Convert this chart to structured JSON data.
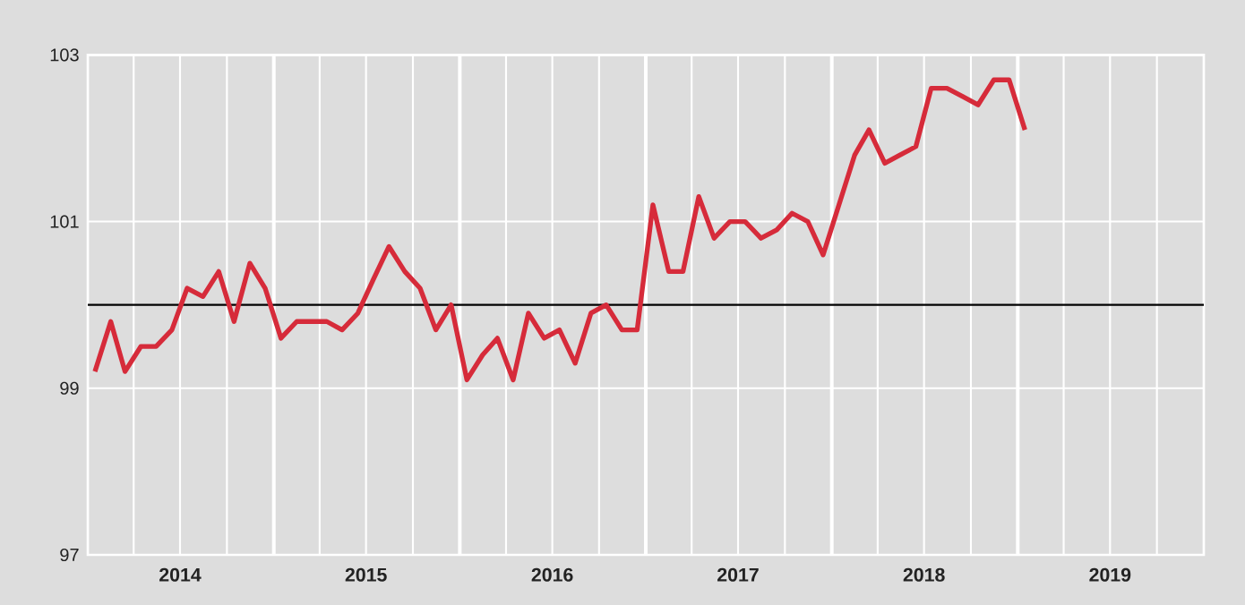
{
  "chart_data": {
    "type": "line",
    "x": [
      "2014-01-15",
      "2014-02-15",
      "2014-03-15",
      "2014-04-15",
      "2014-05-15",
      "2014-06-15",
      "2014-07-15",
      "2014-08-15",
      "2014-09-15",
      "2014-10-15",
      "2014-11-15",
      "2014-12-15",
      "2015-01-15",
      "2015-02-15",
      "2015-03-15",
      "2015-04-15",
      "2015-05-15",
      "2015-06-15",
      "2015-07-15",
      "2015-08-15",
      "2015-09-15",
      "2015-10-15",
      "2015-11-15",
      "2015-12-15",
      "2016-01-15",
      "2016-02-15",
      "2016-03-15",
      "2016-04-15",
      "2016-05-15",
      "2016-06-15",
      "2016-07-15",
      "2016-08-15",
      "2016-09-15",
      "2016-10-15",
      "2016-11-15",
      "2016-12-15",
      "2017-01-15",
      "2017-02-15",
      "2017-03-15",
      "2017-04-15",
      "2017-05-15",
      "2017-06-15",
      "2017-07-15",
      "2017-08-15",
      "2017-09-15",
      "2017-10-15",
      "2017-11-15",
      "2017-12-15",
      "2018-01-15",
      "2018-02-15",
      "2018-03-15",
      "2018-04-15",
      "2018-05-15",
      "2018-06-15",
      "2018-07-15",
      "2018-08-15",
      "2018-09-15",
      "2018-10-15",
      "2018-11-15",
      "2018-12-15",
      "2019-01-15"
    ],
    "series": [
      {
        "color": "#d62b3a",
        "values": [
          99.2,
          99.8,
          99.2,
          99.5,
          99.5,
          99.7,
          100.2,
          100.1,
          100.4,
          99.8,
          100.5,
          100.2,
          99.6,
          99.8,
          99.8,
          99.8,
          99.7,
          99.9,
          100.3,
          100.7,
          100.4,
          100.2,
          99.7,
          100.0,
          99.1,
          99.4,
          99.6,
          99.1,
          99.9,
          99.6,
          99.7,
          99.3,
          99.9,
          100.0,
          99.7,
          99.7,
          101.2,
          100.4,
          100.4,
          101.3,
          100.8,
          101.0,
          101.0,
          100.8,
          100.9,
          101.1,
          101.0,
          100.6,
          101.2,
          101.8,
          102.1,
          101.7,
          101.8,
          101.9,
          102.6,
          102.6,
          102.5,
          102.4,
          102.7,
          102.7,
          102.1
        ]
      }
    ],
    "xlim": [
      "2014-01-01",
      "2020-01-01"
    ],
    "xticks": [
      {
        "value": "2014-04-01",
        "label": null
      },
      {
        "value": "2014-07-01",
        "label": "2014"
      },
      {
        "value": "2014-10-01",
        "label": null
      },
      {
        "value": "2015-01-01",
        "label": null
      },
      {
        "value": "2015-04-01",
        "label": null
      },
      {
        "value": "2015-07-01",
        "label": "2015"
      },
      {
        "value": "2015-10-01",
        "label": null
      },
      {
        "value": "2016-01-01",
        "label": null
      },
      {
        "value": "2016-04-01",
        "label": null
      },
      {
        "value": "2016-07-01",
        "label": "2016"
      },
      {
        "value": "2016-10-01",
        "label": null
      },
      {
        "value": "2017-01-01",
        "label": null
      },
      {
        "value": "2017-04-01",
        "label": null
      },
      {
        "value": "2017-07-01",
        "label": "2017"
      },
      {
        "value": "2017-10-01",
        "label": null
      },
      {
        "value": "2018-01-01",
        "label": null
      },
      {
        "value": "2018-04-01",
        "label": null
      },
      {
        "value": "2018-07-01",
        "label": "2018"
      },
      {
        "value": "2018-10-01",
        "label": null
      },
      {
        "value": "2019-01-01",
        "label": null
      },
      {
        "value": "2019-04-01",
        "label": null
      },
      {
        "value": "2019-07-01",
        "label": "2019"
      },
      {
        "value": "2019-10-01",
        "label": null
      }
    ],
    "ylim": [
      97,
      103
    ],
    "yticks": [
      97,
      99,
      101,
      103
    ],
    "grid": true,
    "marker": "none",
    "line_style": "solid",
    "ref_lines": [
      {
        "axis": "y",
        "value": 100,
        "color": "#000000"
      }
    ]
  }
}
